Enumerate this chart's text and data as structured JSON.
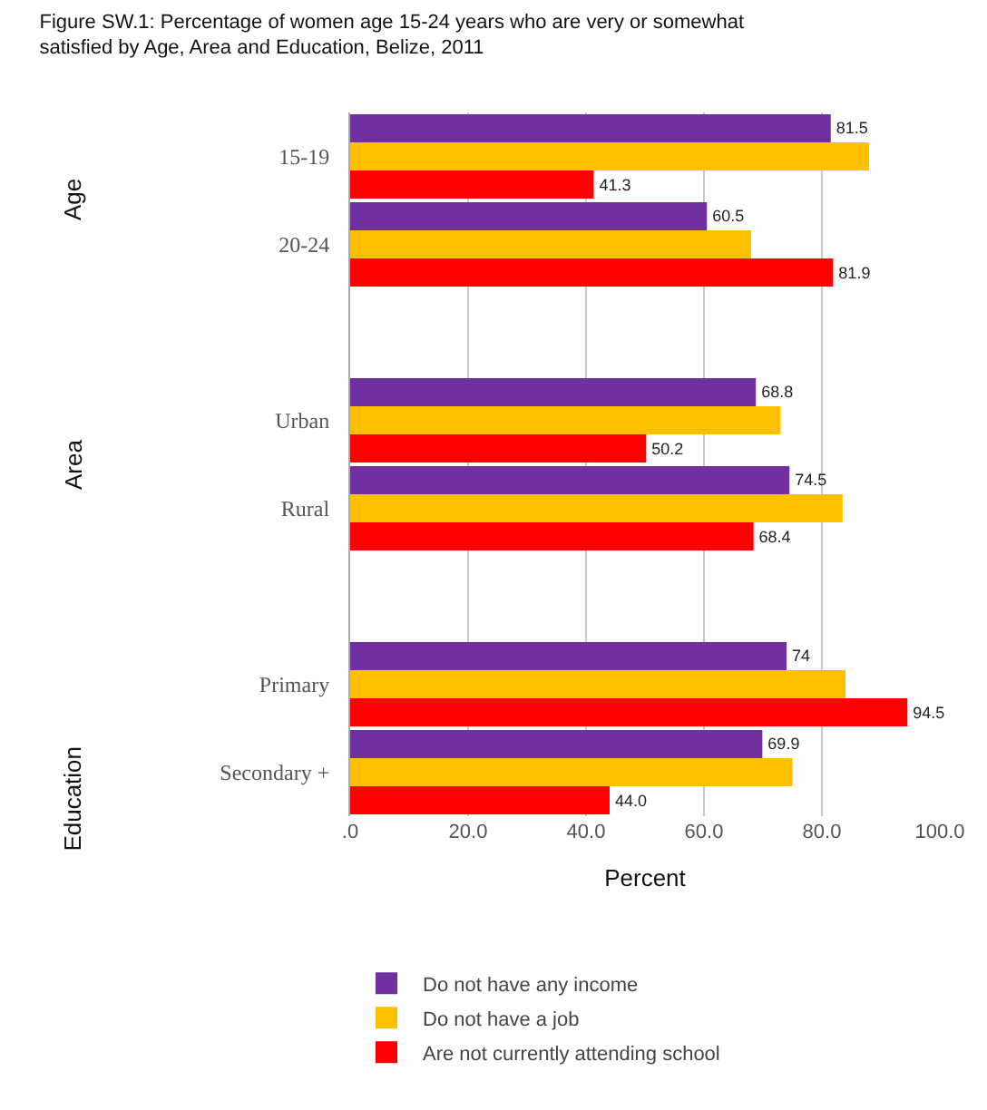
{
  "chart_data": {
    "type": "bar",
    "orientation": "horizontal",
    "title": "Figure SW.1: Percentage of women age 15-24 years who are very or somewhat satisfied by Age, Area and Education, Belize, 2011",
    "xlabel": "Percent",
    "categories": [
      "15-19",
      "20-24",
      null,
      "Urban",
      "Rural",
      null,
      "Primary",
      "Secondary +"
    ],
    "series": [
      {
        "name": "Do not have any income",
        "color": "#7030a0",
        "values": [
          81.5,
          60.5,
          null,
          68.8,
          74.5,
          null,
          74,
          69.9
        ],
        "value_labels": [
          "81.5",
          "60.5",
          null,
          "68.8",
          "74.5",
          null,
          "74",
          "69.9"
        ]
      },
      {
        "name": "Do not have a job",
        "color": "#ffc000",
        "values": [
          88,
          68,
          null,
          73,
          83.5,
          null,
          84,
          75
        ]
      },
      {
        "name": "Are not currently attending school",
        "color": "#ff0000",
        "values": [
          41.3,
          81.9,
          null,
          50.2,
          68.4,
          null,
          94.5,
          44.0
        ],
        "value_labels": [
          "41.3",
          "81.9",
          null,
          "50.2",
          "68.4",
          null,
          "94.5",
          "44.0"
        ]
      }
    ],
    "xlim": [
      0,
      100
    ],
    "xticks": [
      {
        "value": 0,
        "label": ".0"
      },
      {
        "value": 20,
        "label": "20.0"
      },
      {
        "value": 40,
        "label": "40.0"
      },
      {
        "value": 60,
        "label": "60.0"
      },
      {
        "value": 80,
        "label": "80.0"
      },
      {
        "value": 100,
        "label": "100.0"
      }
    ],
    "grid": "x",
    "legend": "bottom",
    "annotations": [
      "Age",
      "Area",
      "Education"
    ]
  }
}
